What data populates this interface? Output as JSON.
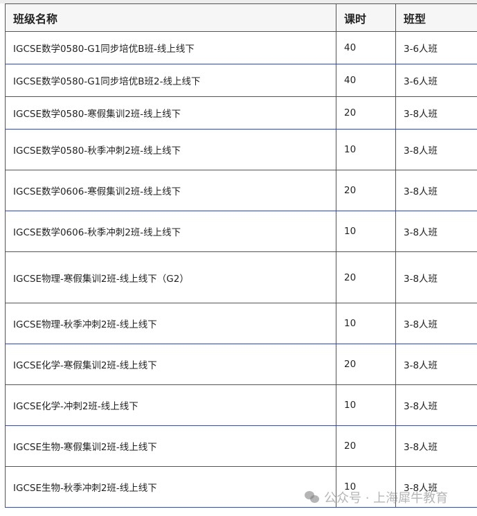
{
  "table": {
    "headers": [
      "班级名称",
      "课时",
      "班型"
    ],
    "rows": [
      {
        "name": "IGCSE数学0580-G1同步培优B班-线上线下",
        "hours": "40",
        "type": "3-6人班"
      },
      {
        "name": "IGCSE数学0580-G1同步培优B班2-线上线下",
        "hours": "40",
        "type": "3-6人班"
      },
      {
        "name": "IGCSE数学0580-寒假集训2班-线上线下",
        "hours": "20",
        "type": "3-8人班"
      },
      {
        "name": "IGCSE数学0580-秋季冲刺2班-线上线下",
        "hours": "10",
        "type": "3-8人班"
      },
      {
        "name": "IGCSE数学0606-寒假集训2班-线上线下",
        "hours": "20",
        "type": "3-8人班"
      },
      {
        "name": "IGCSE数学0606-秋季冲刺2班-线上线下",
        "hours": "10",
        "type": "3-8人班"
      },
      {
        "name": "IGCSE物理-寒假集训2班-线上线下（G2）",
        "hours": "20",
        "type": "3-8人班"
      },
      {
        "name": "IGCSE物理-秋季冲刺2班-线上线下",
        "hours": "10",
        "type": "3-8人班"
      },
      {
        "name": "IGCSE化学-寒假集训2班-线上线下",
        "hours": "20",
        "type": "3-8人班"
      },
      {
        "name": "IGCSE化学-冲刺2班-线上线下",
        "hours": "10",
        "type": "3-8人班"
      },
      {
        "name": "IGCSE生物-寒假集训2班-线上线下",
        "hours": "20",
        "type": "3-8人班"
      },
      {
        "name": "IGCSE生物-秋季冲刺2班-线上线下",
        "hours": "10",
        "type": "3-8人班"
      }
    ]
  },
  "watermark": {
    "text": "公众号 · 上海犀牛教育",
    "icon": "wechat-icon"
  },
  "colors": {
    "border": "#3a4bc2",
    "header_bg": "#f6f6f6"
  }
}
